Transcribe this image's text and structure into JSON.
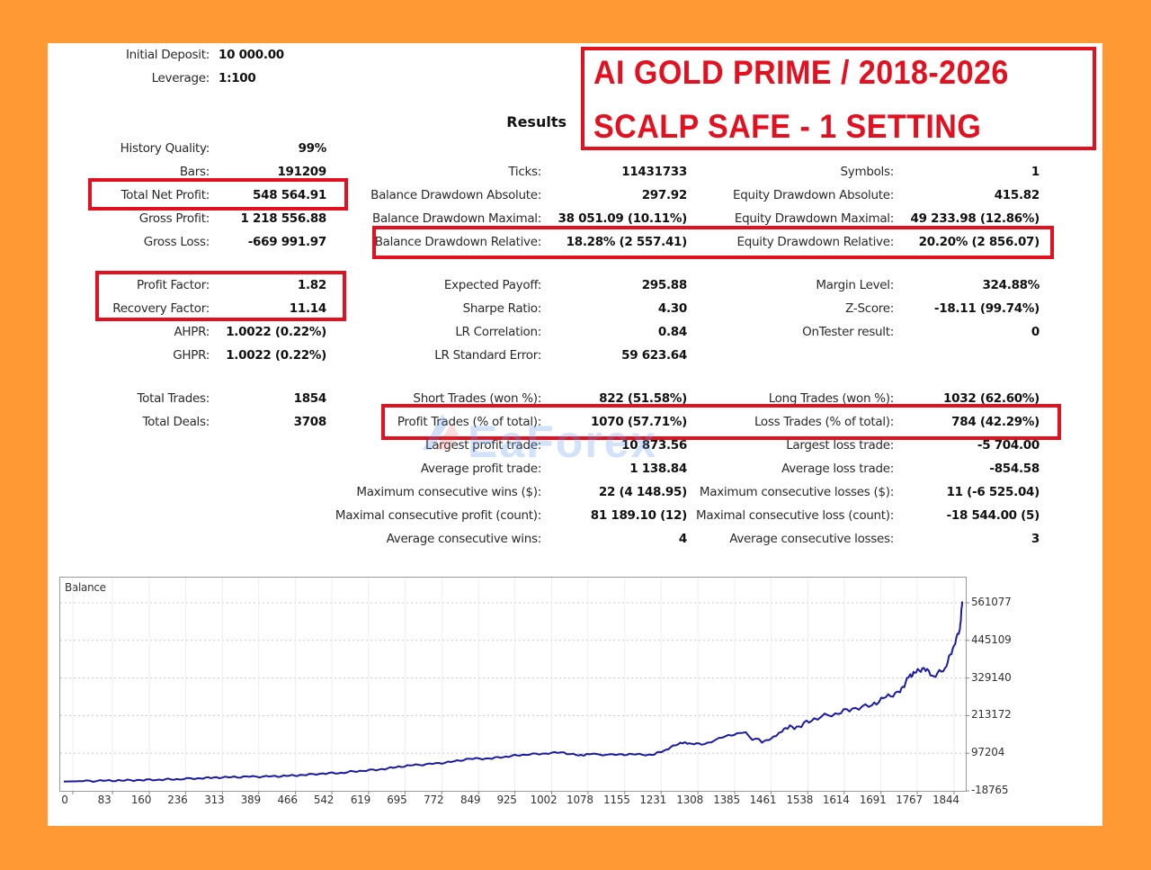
{
  "header": {
    "initial_deposit_label": "Initial Deposit:",
    "initial_deposit_value": "10 000.00",
    "leverage_label": "Leverage:",
    "leverage_value": "1:100",
    "results_title": "Results"
  },
  "title_banner": {
    "line1": "AI GOLD PRIME / 2018-2026",
    "line2": "SCALP SAFE - 1 SETTING",
    "color": "#E3101F"
  },
  "watermark": "EaForex",
  "col1": [
    {
      "label": "History Quality:",
      "value": "99%"
    },
    {
      "label": "Bars:",
      "value": "191209"
    },
    {
      "label": "Total Net Profit:",
      "value": "548 564.91"
    },
    {
      "label": "Gross Profit:",
      "value": "1 218 556.88"
    },
    {
      "label": "Gross Loss:",
      "value": "-669 991.97"
    },
    {
      "label": "Profit Factor:",
      "value": "1.82"
    },
    {
      "label": "Recovery Factor:",
      "value": "11.14"
    },
    {
      "label": "AHPR:",
      "value": "1.0022 (0.22%)"
    },
    {
      "label": "GHPR:",
      "value": "1.0022 (0.22%)"
    },
    {
      "label": "Total Trades:",
      "value": "1854"
    },
    {
      "label": "Total Deals:",
      "value": "3708"
    }
  ],
  "col2": [
    {
      "label": "Ticks:",
      "value": "11431733"
    },
    {
      "label": "Balance Drawdown Absolute:",
      "value": "297.92"
    },
    {
      "label": "Balance Drawdown Maximal:",
      "value": "38 051.09 (10.11%)"
    },
    {
      "label": "Balance Drawdown Relative:",
      "value": "18.28% (2 557.41)"
    },
    {
      "label": "Expected Payoff:",
      "value": "295.88"
    },
    {
      "label": "Sharpe Ratio:",
      "value": "4.30"
    },
    {
      "label": "LR Correlation:",
      "value": "0.84"
    },
    {
      "label": "LR Standard Error:",
      "value": "59 623.64"
    },
    {
      "label": "Short Trades (won %):",
      "value": "822 (51.58%)"
    },
    {
      "label": "Profit Trades (% of total):",
      "value": "1070 (57.71%)"
    },
    {
      "label": "Largest profit trade:",
      "value": "10 873.56"
    },
    {
      "label": "Average profit trade:",
      "value": "1 138.84"
    },
    {
      "label": "Maximum consecutive wins ($):",
      "value": "22 (4 148.95)"
    },
    {
      "label": "Maximal consecutive profit (count):",
      "value": "81 189.10 (12)"
    },
    {
      "label": "Average consecutive wins:",
      "value": "4"
    }
  ],
  "col3": [
    {
      "label": "Symbols:",
      "value": "1"
    },
    {
      "label": "Equity Drawdown Absolute:",
      "value": "415.82"
    },
    {
      "label": "Equity Drawdown Maximal:",
      "value": "49 233.98 (12.86%)"
    },
    {
      "label": "Equity Drawdown Relative:",
      "value": "20.20% (2 856.07)"
    },
    {
      "label": "Margin Level:",
      "value": "324.88%"
    },
    {
      "label": "Z-Score:",
      "value": "-18.11 (99.74%)"
    },
    {
      "label": "OnTester result:",
      "value": "0"
    },
    {
      "label": "Long Trades (won %):",
      "value": "1032 (62.60%)"
    },
    {
      "label": "Loss Trades (% of total):",
      "value": "784 (42.29%)"
    },
    {
      "label": "Largest loss trade:",
      "value": "-5 704.00"
    },
    {
      "label": "Average loss trade:",
      "value": "-854.58"
    },
    {
      "label": "Maximum consecutive losses ($):",
      "value": "11 (-6 525.04)"
    },
    {
      "label": "Maximal consecutive loss (count):",
      "value": "-18 544.00 (5)"
    },
    {
      "label": "Average consecutive losses:",
      "value": "3"
    }
  ],
  "highlight_color": "#E3101F",
  "chart_data": {
    "type": "line",
    "title": "Balance",
    "xlabel": "",
    "ylabel": "",
    "line_color": "#1A1AA6",
    "x_ticks": [
      "0",
      "83",
      "160",
      "236",
      "313",
      "389",
      "466",
      "542",
      "619",
      "695",
      "772",
      "849",
      "925",
      "1002",
      "1078",
      "1155",
      "1231",
      "1308",
      "1385",
      "1461",
      "1538",
      "1614",
      "1691",
      "1767",
      "1844"
    ],
    "y_ticks": [
      "561077",
      "445109",
      "329140",
      "213172",
      "97204",
      "-18765"
    ],
    "ylim": [
      -18765,
      561077
    ],
    "xlim": [
      0,
      1880
    ],
    "grid": true,
    "series": [
      {
        "name": "Balance",
        "x": [
          0,
          40,
          83,
          120,
          160,
          200,
          236,
          280,
          313,
          350,
          389,
          430,
          466,
          500,
          542,
          580,
          619,
          660,
          695,
          730,
          772,
          810,
          849,
          890,
          925,
          960,
          1002,
          1040,
          1078,
          1100,
          1155,
          1190,
          1231,
          1260,
          1290,
          1308,
          1340,
          1385,
          1420,
          1461,
          1490,
          1510,
          1538,
          1570,
          1614,
          1650,
          1691,
          1720,
          1750,
          1767,
          1780,
          1800,
          1820,
          1844,
          1860,
          1875,
          1880
        ],
        "y": [
          10000,
          11000,
          12000,
          13000,
          14500,
          16000,
          17500,
          20000,
          22000,
          23000,
          24500,
          25000,
          27000,
          30000,
          35000,
          37000,
          43000,
          47000,
          54000,
          60000,
          64000,
          70000,
          80000,
          81000,
          87000,
          93000,
          96000,
          100000,
          90000,
          94000,
          92000,
          94000,
          92000,
          108000,
          130000,
          128000,
          125000,
          150000,
          160000,
          130000,
          150000,
          175000,
          180000,
          205000,
          220000,
          235000,
          245000,
          270000,
          285000,
          330000,
          345000,
          360000,
          335000,
          360000,
          420000,
          480000,
          565000
        ]
      }
    ]
  }
}
